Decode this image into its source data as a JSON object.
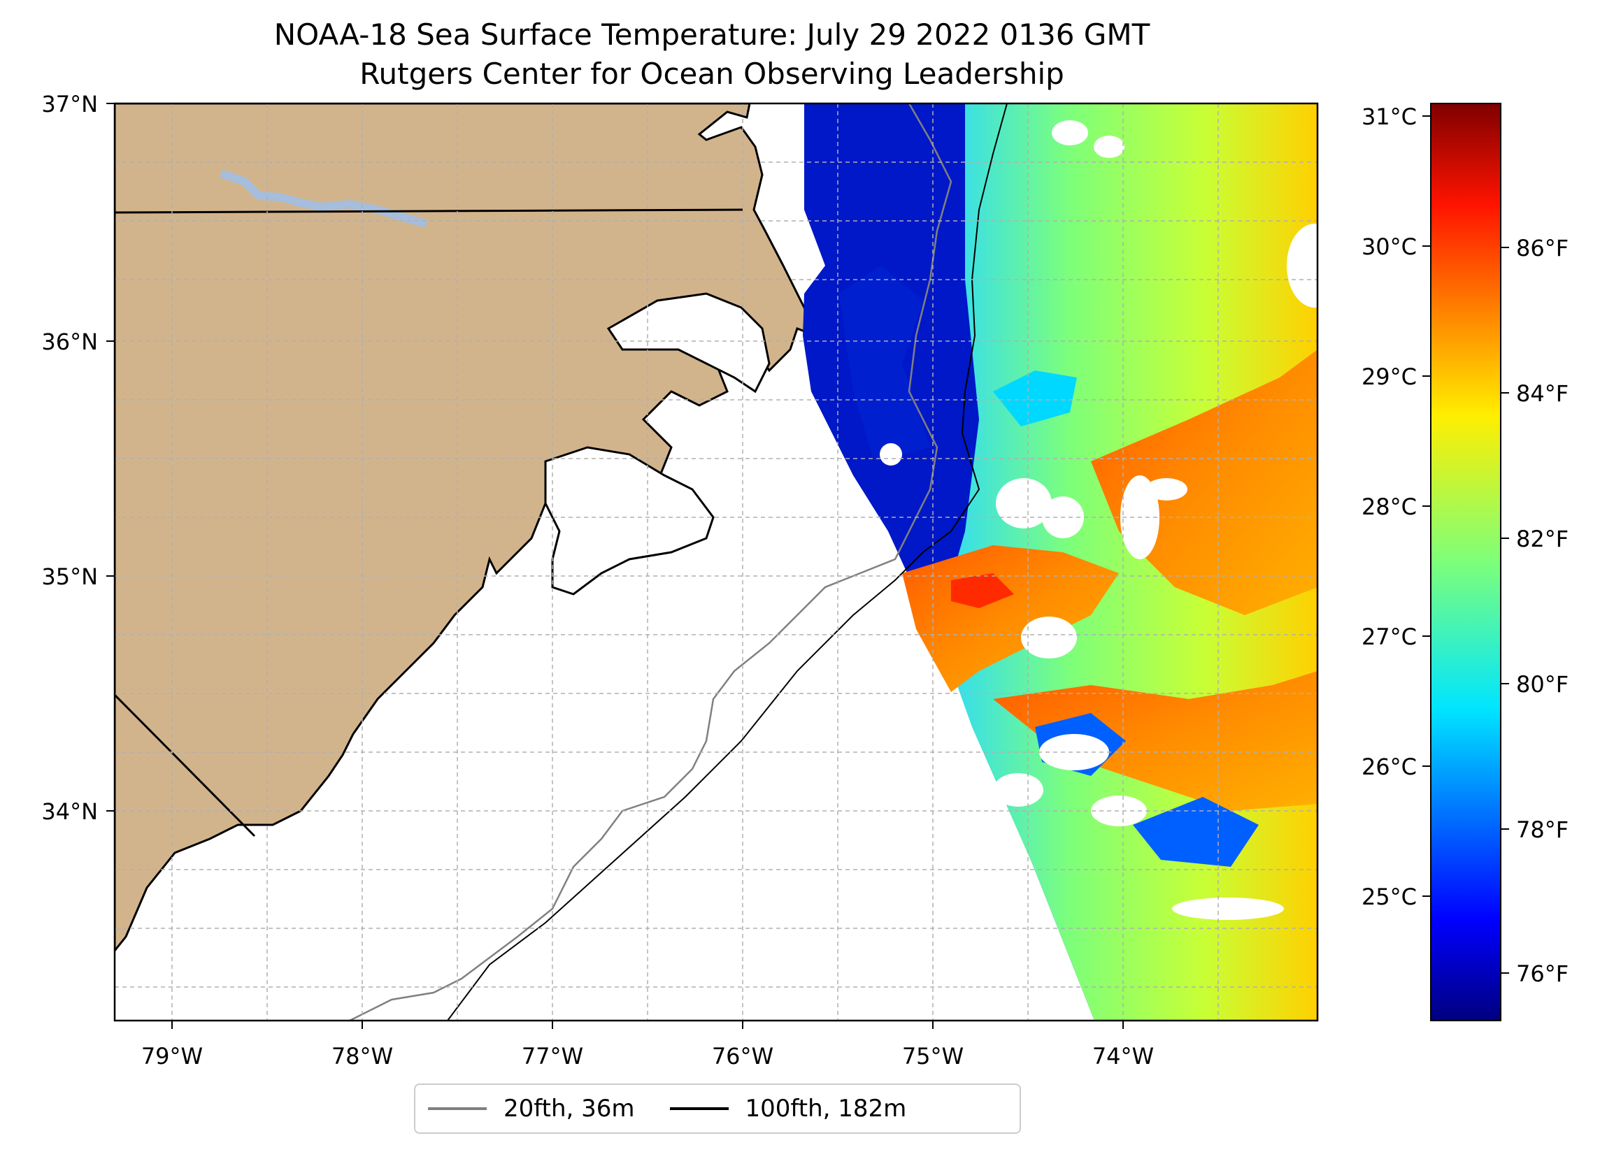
{
  "map": {
    "title_line1": "NOAA-18 Sea Surface Temperature: July 29 2022 0136 GMT",
    "title_line2": "Rutgers Center for Ocean Observing Leadership",
    "lon_ticks": [
      "79°W",
      "78°W",
      "77°W",
      "76°W",
      "75°W",
      "74°W"
    ],
    "lat_ticks": [
      "37°N",
      "36°N",
      "35°N",
      "34°N"
    ],
    "extent": {
      "lon_min": -79.3,
      "lon_max": -73.03,
      "lat_min": 33.1,
      "lat_max": 37.0
    },
    "land_color": "#d2b48c",
    "lake_color": "#a6bddb",
    "region": "North Carolina coast / Outer Banks",
    "colormap": "jet"
  },
  "colorbar": {
    "celsius_ticks": [
      "31°C",
      "30°C",
      "29°C",
      "28°C",
      "27°C",
      "26°C",
      "25°C"
    ],
    "fahrenheit_ticks": [
      "86°F",
      "84°F",
      "82°F",
      "80°F",
      "78°F",
      "76°F"
    ],
    "range_c": [
      24.1,
      31.1
    ]
  },
  "legend": {
    "items": [
      {
        "label": "20fth, 36m",
        "color": "#808080"
      },
      {
        "label": "100fth, 182m",
        "color": "#000000"
      }
    ]
  }
}
